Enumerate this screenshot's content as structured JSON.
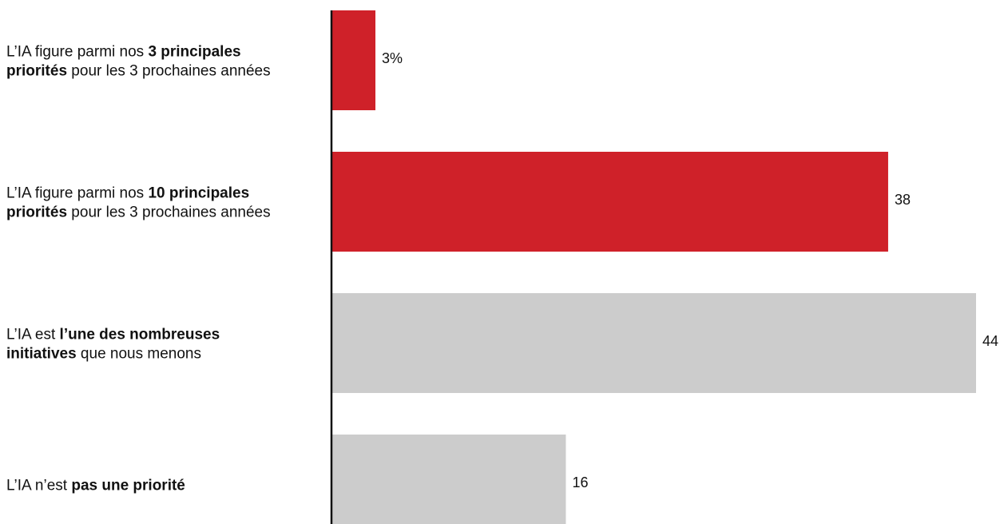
{
  "chart_data": {
    "type": "bar",
    "orientation": "horizontal",
    "categories": [
      "L’IA figure parmi nos 3 principales priorités pour les 3 prochaines années",
      "L’IA figure parmi nos 10 principales priorités pour les 3 prochaines années",
      "L’IA est l’une des nombreuses initiatives que nous menons",
      "L’IA n’est pas une priorité"
    ],
    "category_label_parts": [
      [
        [
          {
            "t": "L’IA figure parmi nos ",
            "b": false
          },
          {
            "t": "3 principales",
            "b": true
          }
        ],
        [
          {
            "t": "priorités",
            "b": true
          },
          {
            "t": " pour les 3 prochaines années",
            "b": false
          }
        ]
      ],
      [
        [
          {
            "t": "L’IA figure parmi nos ",
            "b": false
          },
          {
            "t": "10 principales",
            "b": true
          }
        ],
        [
          {
            "t": "priorités",
            "b": true
          },
          {
            "t": " pour les 3 prochaines années",
            "b": false
          }
        ]
      ],
      [
        [
          {
            "t": "L’IA est ",
            "b": false
          },
          {
            "t": "l’une des nombreuses",
            "b": true
          }
        ],
        [
          {
            "t": "initiatives",
            "b": true
          },
          {
            "t": " que nous menons",
            "b": false
          }
        ]
      ],
      [
        [
          {
            "t": "L’IA n’est ",
            "b": false
          },
          {
            "t": "pas une priorité",
            "b": true
          }
        ]
      ]
    ],
    "values": [
      3,
      38,
      44,
      16
    ],
    "value_labels": [
      "3%",
      "38",
      "44",
      "16"
    ],
    "bar_colors": [
      "#cf2129",
      "#cf2129",
      "#cccccc",
      "#cccccc"
    ],
    "axis_color": "#111111",
    "xlim": [
      0,
      44
    ],
    "grid": false,
    "legend": "none",
    "title": "",
    "xlabel": "",
    "ylabel": ""
  }
}
